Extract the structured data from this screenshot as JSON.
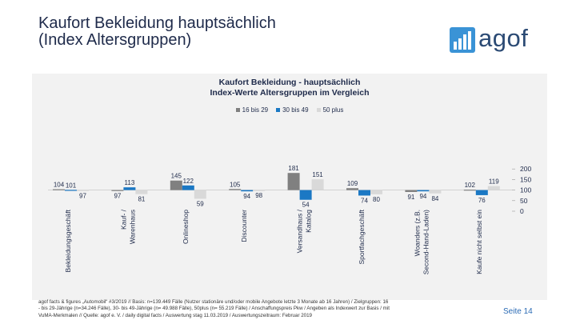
{
  "page_title": "Kaufort Bekleidung hauptsächlich\n(Index Altersgruppen)",
  "logo": {
    "text": "agof",
    "icon": "bar-chart-logo-icon"
  },
  "colors": {
    "s1": "#808080",
    "s2": "#1b78c4",
    "s3": "#d9d9d9",
    "panel": "#f2f2f2",
    "title": "#1e2a4a",
    "accent": "#2b6bb5"
  },
  "chart_data": {
    "type": "bar",
    "title": "Kaufort Bekleidung - hauptsächlich\nIndex-Werte Altersgruppen im Vergleich",
    "categories": [
      "Bekleidungsgeschäft",
      "Kauf- / Warenhaus",
      "Onlineshop",
      "Discounter",
      "Versandhaus / Katalog",
      "Sportfachgeschäft",
      "Woanders (z.B. Second-Hand-Laden)",
      "Kaufe nicht selbst ein"
    ],
    "series": [
      {
        "name": "16 bis 29",
        "values": [
          104,
          97,
          145,
          105,
          181,
          109,
          91,
          102
        ]
      },
      {
        "name": "30 bis 49",
        "values": [
          101,
          113,
          122,
          94,
          54,
          74,
          94,
          76
        ]
      },
      {
        "name": "50 plus",
        "values": [
          97,
          81,
          59,
          98,
          151,
          80,
          84,
          119
        ]
      }
    ],
    "ylim": [
      0,
      200
    ],
    "yticks": [
      0,
      50,
      100,
      150,
      200
    ],
    "baseline": 100,
    "ylabel": "",
    "xlabel": "",
    "legend_position": "top-center"
  },
  "footnote": "agof facts & figures „Automobil“ #3/2019 // Basis: n=139.449 Fälle (Nutzer stationäre und/oder mobile Angebote letzte 3 Monate ab 16 Jahren) / Zielgruppen: 16\n- bis 29-Jährige (n=34.246 Fälle), 30- bis 49-Jährige (n= 49.988 Fälle), 50plus (n= 55.219 Fälle) / Anschaffungspreis Pkw / Angeben als Indexwert zur Basis / mit\nVuMA-Merkmalen // Quelle: agof e. V. / daily digital facts / Auswertung stag 11.03.2019 / Auswertungszeitraum: Februar 2019",
  "page_number": "Seite 14"
}
